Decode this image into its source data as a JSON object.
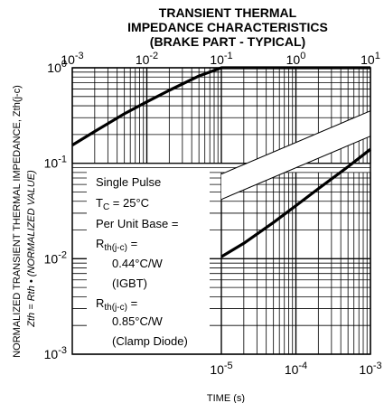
{
  "chart_data": {
    "type": "line",
    "title": [
      "TRANSIENT THERMAL",
      "IMPEDANCE CHARACTERISTICS",
      "(BRAKE PART - TYPICAL)"
    ],
    "ylabel_main": "NORMALIZED TRANSIENT THERMAL IMPEDANCE, Zth(j-c)",
    "ylabel_sub": "Zth = Rth • (NORMALIZED VALUE)",
    "xlabel": "TIME  (s)",
    "y_scale": "log",
    "x_scale": "log",
    "ylim": [
      0.001,
      1
    ],
    "xlim_top": [
      0.001,
      10
    ],
    "xlim_bottom": [
      1e-05,
      0.001
    ],
    "y_tick_labels": [
      "10^0",
      "10^-1",
      "10^-2",
      "10^-3"
    ],
    "x_top_tick_labels": [
      "10^-3",
      "10^-2",
      "10^-1",
      "10^0",
      "10^1"
    ],
    "x_bottom_tick_labels": [
      "10^-5",
      "10^-4",
      "10^-3"
    ],
    "grid": true,
    "series": [
      {
        "axis": "top",
        "x": [
          0.001,
          0.002,
          0.005,
          0.01,
          0.02,
          0.05,
          0.1,
          0.2,
          1,
          10
        ],
        "y": [
          0.155,
          0.215,
          0.33,
          0.44,
          0.58,
          0.82,
          1.0,
          1.0,
          1.0,
          1.0
        ]
      },
      {
        "axis": "bottom",
        "x": [
          1e-05,
          2e-05,
          5e-05,
          0.0001,
          0.0002,
          0.0005,
          0.001
        ],
        "y": [
          0.0105,
          0.0145,
          0.024,
          0.036,
          0.054,
          0.092,
          0.14
        ]
      }
    ],
    "annotation": {
      "lines": [
        "Single Pulse",
        "TC = 25°C",
        "Per Unit Base =",
        "Rth(j-c) =",
        "0.44°C/W",
        "(IGBT)",
        "Rth(j-c) =",
        "0.85°C/W",
        "(Clamp Diode)"
      ]
    }
  }
}
